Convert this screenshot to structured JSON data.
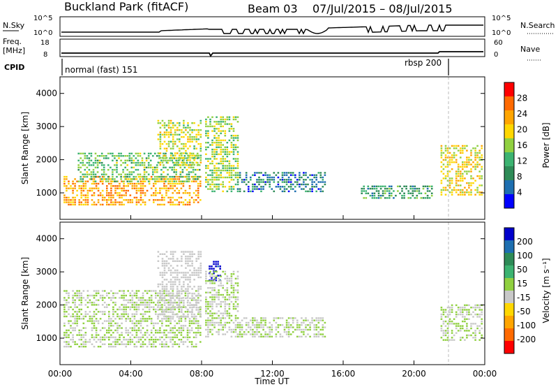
{
  "title": {
    "site": "Buckland Park (fitACF)",
    "beam": "Beam 03",
    "dates": "07/Jul/2015 – 08/Jul/2015"
  },
  "header_panels": {
    "nsky_label": "N.Sky",
    "nsky_ticks": [
      "10^5",
      "10^0"
    ],
    "nsearch_label": "N.Search",
    "nsearch_ticks": [
      "10^5",
      "10^0"
    ],
    "freq_label_line1": "Freq.",
    "freq_label_line2": "[MHz]",
    "freq_ticks": [
      "18",
      "8"
    ],
    "nave_label": "Nave",
    "nave_ticks": [
      "60",
      "0"
    ],
    "cpid_label": "CPID",
    "cpid_mode_1": "normal (fast) 151",
    "cpid_mode_2": "rbsp 200"
  },
  "chart_data": [
    {
      "type": "heatmap",
      "name": "power",
      "ylabel": "Slant Range [km]",
      "xlabel": "",
      "xlim_hours": [
        0,
        24
      ],
      "ylim": [
        200,
        4500
      ],
      "yticks": [
        "4000",
        "3000",
        "2000",
        "1000"
      ],
      "colorbar": {
        "label": "Power [dB]",
        "ticks": [
          "28",
          "24",
          "20",
          "16",
          "12",
          "8",
          "4"
        ],
        "colors": [
          "#ff0000",
          "#ff6a00",
          "#ffa500",
          "#ffd700",
          "#90d040",
          "#3cb371",
          "#2e8b57",
          "#1e6fb0",
          "#0000ff"
        ]
      },
      "regions": [
        {
          "t0": 0.2,
          "t1": 7.9,
          "r0": 600,
          "r1": 1500,
          "level": 24
        },
        {
          "t0": 1.0,
          "t1": 7.9,
          "r0": 1300,
          "r1": 2200,
          "level": 14
        },
        {
          "t0": 5.5,
          "t1": 8.0,
          "r0": 1800,
          "r1": 3200,
          "level": 18
        },
        {
          "t0": 8.2,
          "t1": 10.0,
          "r0": 1000,
          "r1": 3300,
          "level": 16
        },
        {
          "t0": 10.0,
          "t1": 15.0,
          "r0": 1000,
          "r1": 1600,
          "level": 6
        },
        {
          "t0": 17.0,
          "t1": 21.0,
          "r0": 800,
          "r1": 1200,
          "level": 10
        },
        {
          "t0": 21.5,
          "t1": 23.8,
          "r0": 900,
          "r1": 2400,
          "level": 20
        }
      ]
    },
    {
      "type": "heatmap",
      "name": "velocity",
      "ylabel": "Slant Range [km]",
      "xlabel": "Time UT",
      "xlim_hours": [
        0,
        24
      ],
      "ylim": [
        200,
        4500
      ],
      "xticks": [
        "00:00",
        "04:00",
        "08:00",
        "12:00",
        "16:00",
        "20:00",
        "00:00"
      ],
      "yticks": [
        "4000",
        "3000",
        "2000",
        "1000"
      ],
      "colorbar": {
        "label": "Velocity [m s⁻¹]",
        "ticks": [
          "200",
          "100",
          "50",
          "15",
          "-15",
          "-50",
          "-100",
          "-200"
        ],
        "colors": [
          "#0000cc",
          "#1e6fb0",
          "#2e8b57",
          "#3cb371",
          "#90d040",
          "#c8c8c8",
          "#ffd700",
          "#ffa500",
          "#ff6a00",
          "#ff0000"
        ]
      },
      "regions": [
        {
          "t0": 0.2,
          "t1": 8.0,
          "r0": 700,
          "r1": 2400,
          "level": 0
        },
        {
          "t0": 5.5,
          "t1": 8.0,
          "r0": 1600,
          "r1": 3600,
          "level": -30
        },
        {
          "t0": 8.4,
          "t1": 9.0,
          "r0": 2700,
          "r1": 3300,
          "level": 200
        },
        {
          "t0": 8.2,
          "t1": 10.0,
          "r0": 1000,
          "r1": 3000,
          "level": 0
        },
        {
          "t0": 10.0,
          "t1": 15.0,
          "r0": 1000,
          "r1": 1600,
          "level": 0
        },
        {
          "t0": 21.5,
          "t1": 23.8,
          "r0": 900,
          "r1": 2000,
          "level": 0
        }
      ]
    }
  ]
}
